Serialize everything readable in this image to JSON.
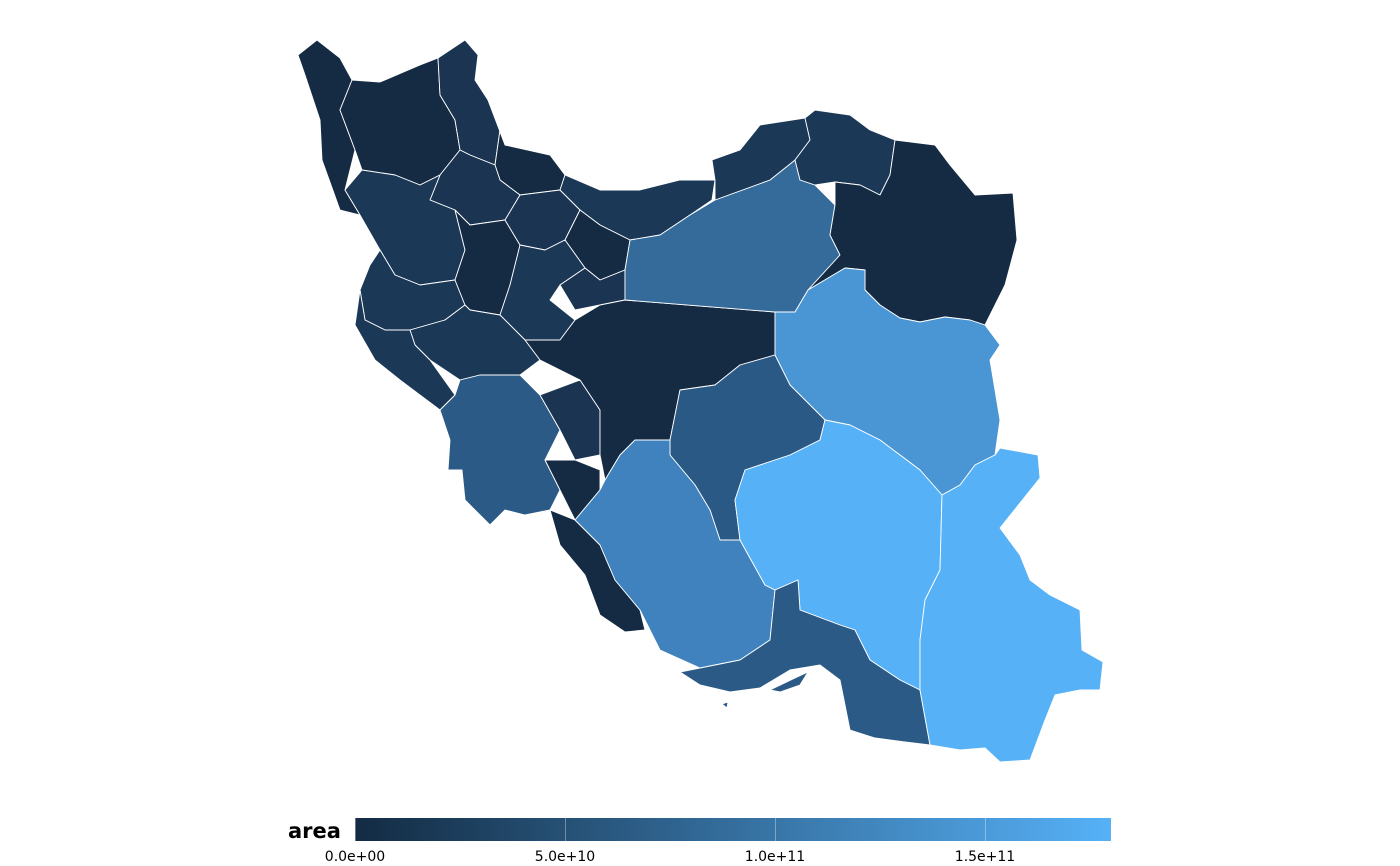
{
  "legend": {
    "title": "area",
    "ticks": [
      "0.0e+00",
      "5.0e+10",
      "1.0e+11",
      "1.5e+11"
    ],
    "tick_values": [
      0,
      50000000000,
      100000000000,
      150000000000
    ],
    "max_value": 180000000000,
    "color_low": "#132b43",
    "color_high": "#56b1f7"
  },
  "map": {
    "subject": "Iran provinces choropleth by area",
    "fill_levels": {
      "northwest": 0.02,
      "caspian_east": 0.15,
      "semnan": 0.45,
      "khorasan_south": 0.75,
      "kerman_sistan": 0.98,
      "fars": 0.6,
      "isfahan": 0.35,
      "hormozgan": 0.3
    }
  }
}
